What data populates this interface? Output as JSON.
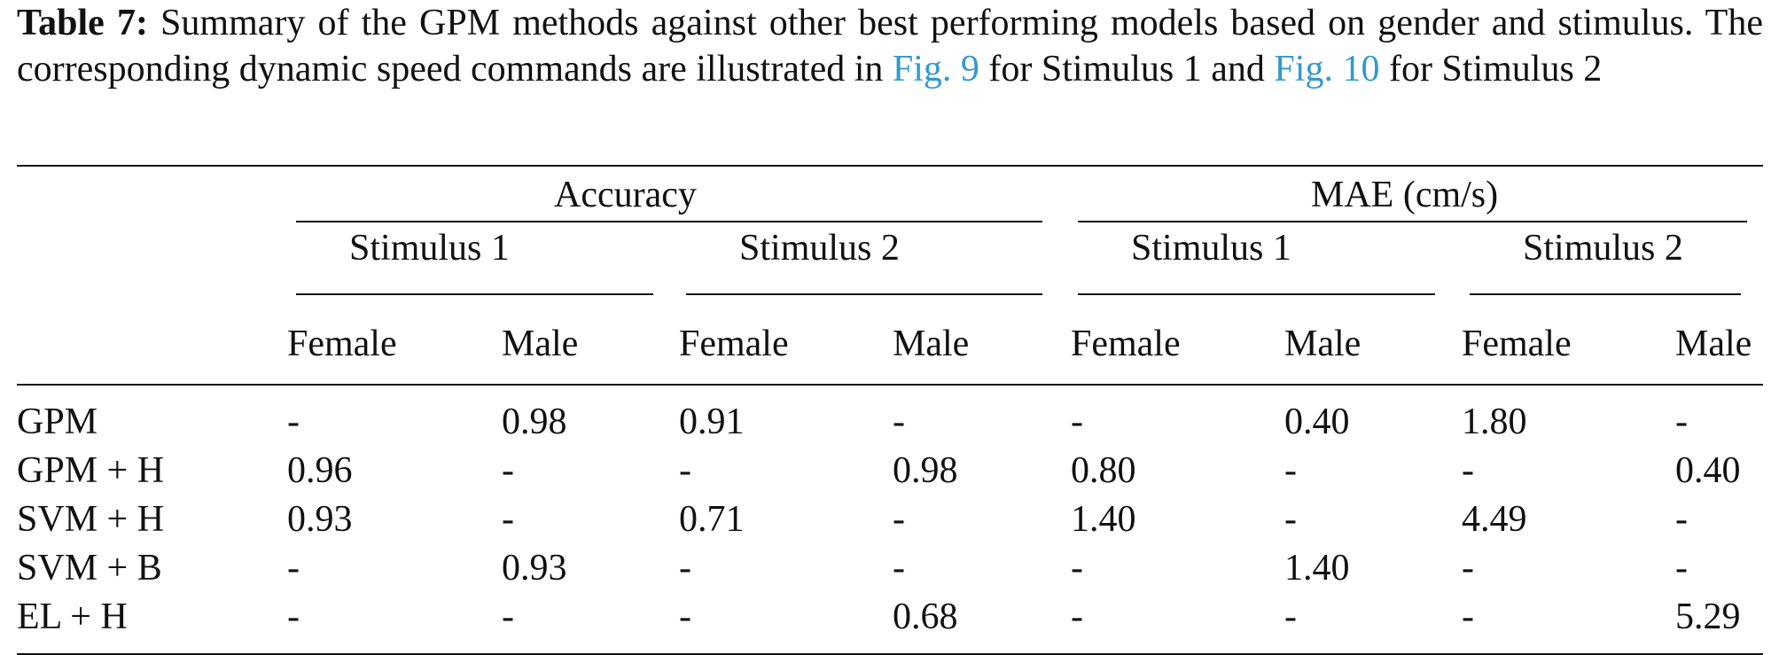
{
  "caption": {
    "label": "Table 7:",
    "part1": " Summary of the GPM methods against other best performing models based on gender and stimulus. The corresponding dynamic speed commands are illustrated in ",
    "link1": "Fig. 9",
    "part2": " for Stimulus 1 and ",
    "link2": "Fig. 10",
    "part3": " for Stimulus 2",
    "link_color": "#3399cc"
  },
  "table": {
    "groups": [
      "Accuracy",
      "MAE (cm/s)"
    ],
    "stimuli": [
      "Stimulus 1",
      "Stimulus 2",
      "Stimulus 1",
      "Stimulus 2"
    ],
    "genders": [
      "Female",
      "Male",
      "Female",
      "Male",
      "Female",
      "Male",
      "Female",
      "Male"
    ],
    "rows": [
      {
        "method": "GPM",
        "values": [
          "-",
          "0.98",
          "0.91",
          "-",
          "-",
          "0.40",
          "1.80",
          "-"
        ]
      },
      {
        "method": "GPM + H",
        "values": [
          "0.96",
          "-",
          "-",
          "0.98",
          "0.80",
          "-",
          "-",
          "0.40"
        ]
      },
      {
        "method": "SVM + H",
        "values": [
          "0.93",
          "-",
          "0.71",
          "-",
          "1.40",
          "-",
          "4.49",
          "-"
        ]
      },
      {
        "method": "SVM + B",
        "values": [
          "-",
          "0.93",
          "-",
          "-",
          "-",
          "1.40",
          "-",
          "-"
        ]
      },
      {
        "method": "EL + H",
        "values": [
          "-",
          "-",
          "-",
          "0.68",
          "-",
          "-",
          "-",
          "5.29"
        ]
      }
    ]
  }
}
